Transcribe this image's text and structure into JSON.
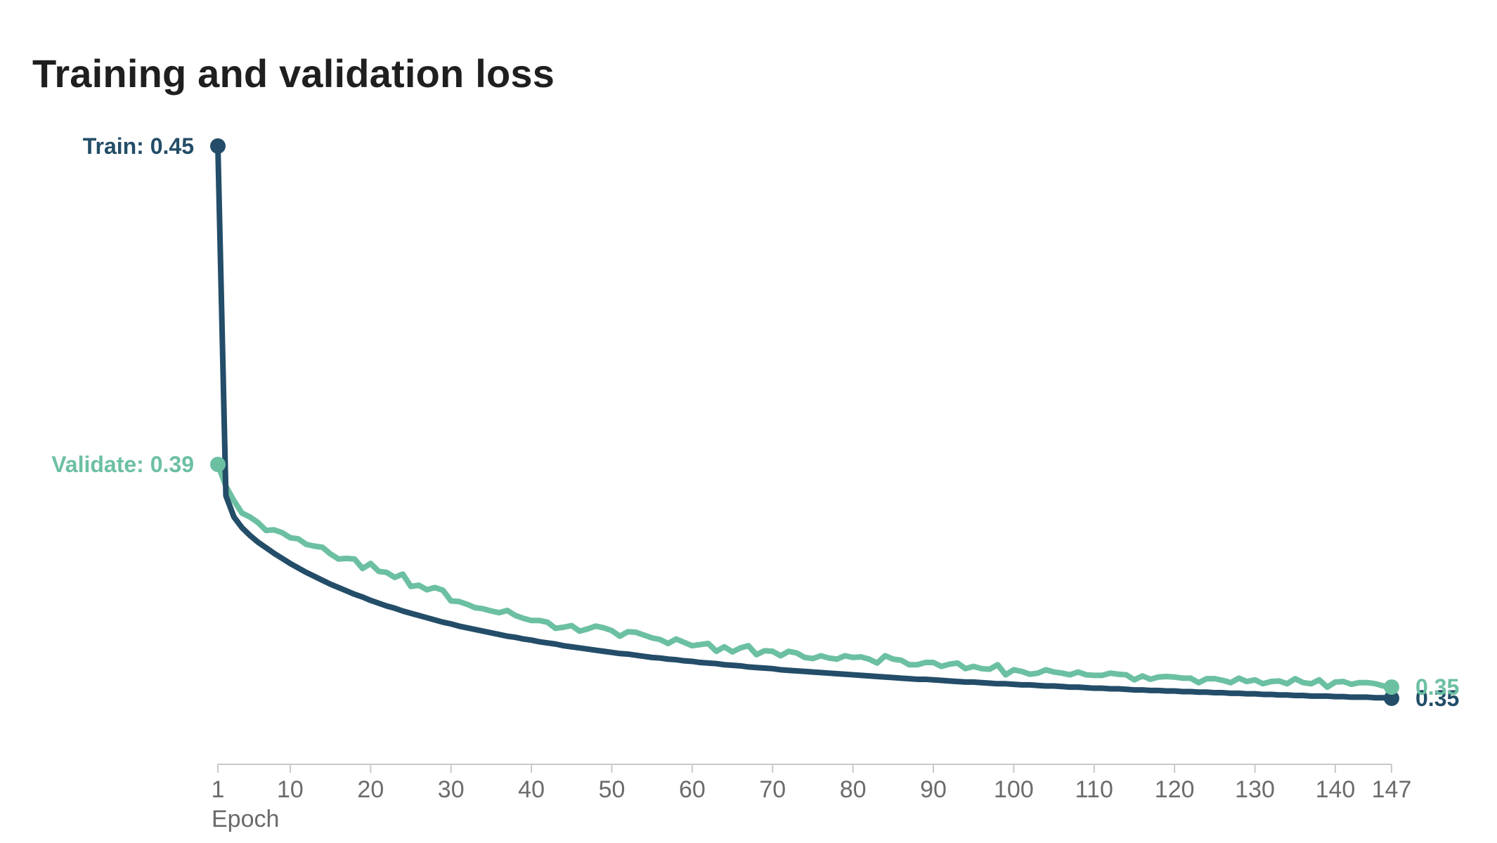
{
  "chart_data": {
    "type": "line",
    "title": "Training and validation loss",
    "xlabel": "Epoch",
    "ylabel": "",
    "xlim": [
      1,
      147
    ],
    "ylim": [
      0.3395,
      0.452
    ],
    "grid": false,
    "legend": "none",
    "x_ticks": [
      1,
      10,
      20,
      30,
      40,
      50,
      60,
      70,
      80,
      90,
      100,
      110,
      120,
      130,
      140,
      147
    ],
    "x_tick_labels": [
      "1",
      "10",
      "20",
      "30",
      "40",
      "50",
      "60",
      "70",
      "80",
      "90",
      "100",
      "110",
      "120",
      "130",
      "140",
      "147"
    ],
    "series": [
      {
        "name": "Train",
        "color": "#234d68",
        "start_label": "Train: 0.45",
        "end_label": "0.35",
        "values": [
          0.45,
          0.3875,
          0.3837,
          0.3818,
          0.3804,
          0.3792,
          0.3782,
          0.3772,
          0.3763,
          0.3754,
          0.3746,
          0.3738,
          0.3731,
          0.3724,
          0.3717,
          0.3711,
          0.3705,
          0.3699,
          0.3694,
          0.3688,
          0.3683,
          0.3678,
          0.3674,
          0.3669,
          0.3665,
          0.3661,
          0.3657,
          0.3653,
          0.3649,
          0.3646,
          0.3642,
          0.3639,
          0.3636,
          0.3633,
          0.363,
          0.3627,
          0.3624,
          0.3622,
          0.3619,
          0.3617,
          0.3614,
          0.3612,
          0.361,
          0.3607,
          0.3605,
          0.3603,
          0.3601,
          0.3599,
          0.3597,
          0.3595,
          0.3593,
          0.3592,
          0.359,
          0.3588,
          0.3586,
          0.3585,
          0.3583,
          0.3582,
          0.358,
          0.3579,
          0.3577,
          0.3576,
          0.3575,
          0.3573,
          0.3572,
          0.3571,
          0.3569,
          0.3568,
          0.3567,
          0.3566,
          0.3564,
          0.3563,
          0.3562,
          0.3561,
          0.356,
          0.3559,
          0.3558,
          0.3557,
          0.3556,
          0.3555,
          0.3554,
          0.3553,
          0.3552,
          0.3551,
          0.355,
          0.3549,
          0.3548,
          0.3547,
          0.3547,
          0.3546,
          0.3545,
          0.3544,
          0.3543,
          0.3542,
          0.3542,
          0.3541,
          0.354,
          0.3539,
          0.3539,
          0.3538,
          0.3537,
          0.3537,
          0.3536,
          0.3535,
          0.3535,
          0.3534,
          0.3533,
          0.3533,
          0.3532,
          0.3531,
          0.3531,
          0.353,
          0.353,
          0.3529,
          0.3528,
          0.3528,
          0.3527,
          0.3527,
          0.3526,
          0.3526,
          0.3525,
          0.3525,
          0.3524,
          0.3524,
          0.3523,
          0.3523,
          0.3522,
          0.3522,
          0.3521,
          0.3521,
          0.352,
          0.352,
          0.3519,
          0.3519,
          0.3518,
          0.3518,
          0.3517,
          0.3517,
          0.3517,
          0.3516,
          0.3516,
          0.3515,
          0.3515,
          0.3515,
          0.3514,
          0.3514,
          0.3513
        ]
      },
      {
        "name": "Validate",
        "color": "#6cc0a2",
        "start_label": "Validate: 0.39",
        "end_label": "0.35",
        "values": [
          0.3931,
          0.3892,
          0.3866,
          0.3844,
          0.3837,
          0.3827,
          0.3813,
          0.3814,
          0.3809,
          0.38,
          0.3798,
          0.3788,
          0.3785,
          0.3783,
          0.3771,
          0.3762,
          0.3763,
          0.3762,
          0.3745,
          0.3754,
          0.374,
          0.3738,
          0.3729,
          0.3735,
          0.3713,
          0.3715,
          0.3707,
          0.3711,
          0.3706,
          0.3687,
          0.3686,
          0.3681,
          0.3675,
          0.3673,
          0.3669,
          0.3666,
          0.367,
          0.3661,
          0.3656,
          0.3652,
          0.3652,
          0.3649,
          0.3638,
          0.364,
          0.3643,
          0.3633,
          0.3637,
          0.3642,
          0.3639,
          0.3634,
          0.3624,
          0.3632,
          0.3631,
          0.3626,
          0.3621,
          0.3618,
          0.3611,
          0.3619,
          0.3613,
          0.3607,
          0.3609,
          0.3611,
          0.3597,
          0.3605,
          0.3596,
          0.3603,
          0.3607,
          0.3591,
          0.3598,
          0.3597,
          0.3589,
          0.3597,
          0.3594,
          0.3586,
          0.3584,
          0.3589,
          0.3585,
          0.3583,
          0.3589,
          0.3586,
          0.3587,
          0.3583,
          0.3576,
          0.3589,
          0.3583,
          0.3581,
          0.3573,
          0.3573,
          0.3577,
          0.3577,
          0.357,
          0.3574,
          0.3576,
          0.3566,
          0.357,
          0.3566,
          0.3565,
          0.3573,
          0.3555,
          0.3564,
          0.3561,
          0.3556,
          0.3558,
          0.3564,
          0.356,
          0.3558,
          0.3555,
          0.356,
          0.3555,
          0.3554,
          0.3554,
          0.3558,
          0.3556,
          0.3555,
          0.3546,
          0.3553,
          0.3547,
          0.3551,
          0.3552,
          0.3551,
          0.3549,
          0.3549,
          0.3541,
          0.3548,
          0.3548,
          0.3545,
          0.3541,
          0.3549,
          0.3543,
          0.3546,
          0.3539,
          0.3543,
          0.3544,
          0.3539,
          0.3548,
          0.3541,
          0.3539,
          0.3546,
          0.3533,
          0.3542,
          0.3543,
          0.3538,
          0.3541,
          0.3541,
          0.3539,
          0.3535,
          0.3533
        ]
      }
    ]
  }
}
